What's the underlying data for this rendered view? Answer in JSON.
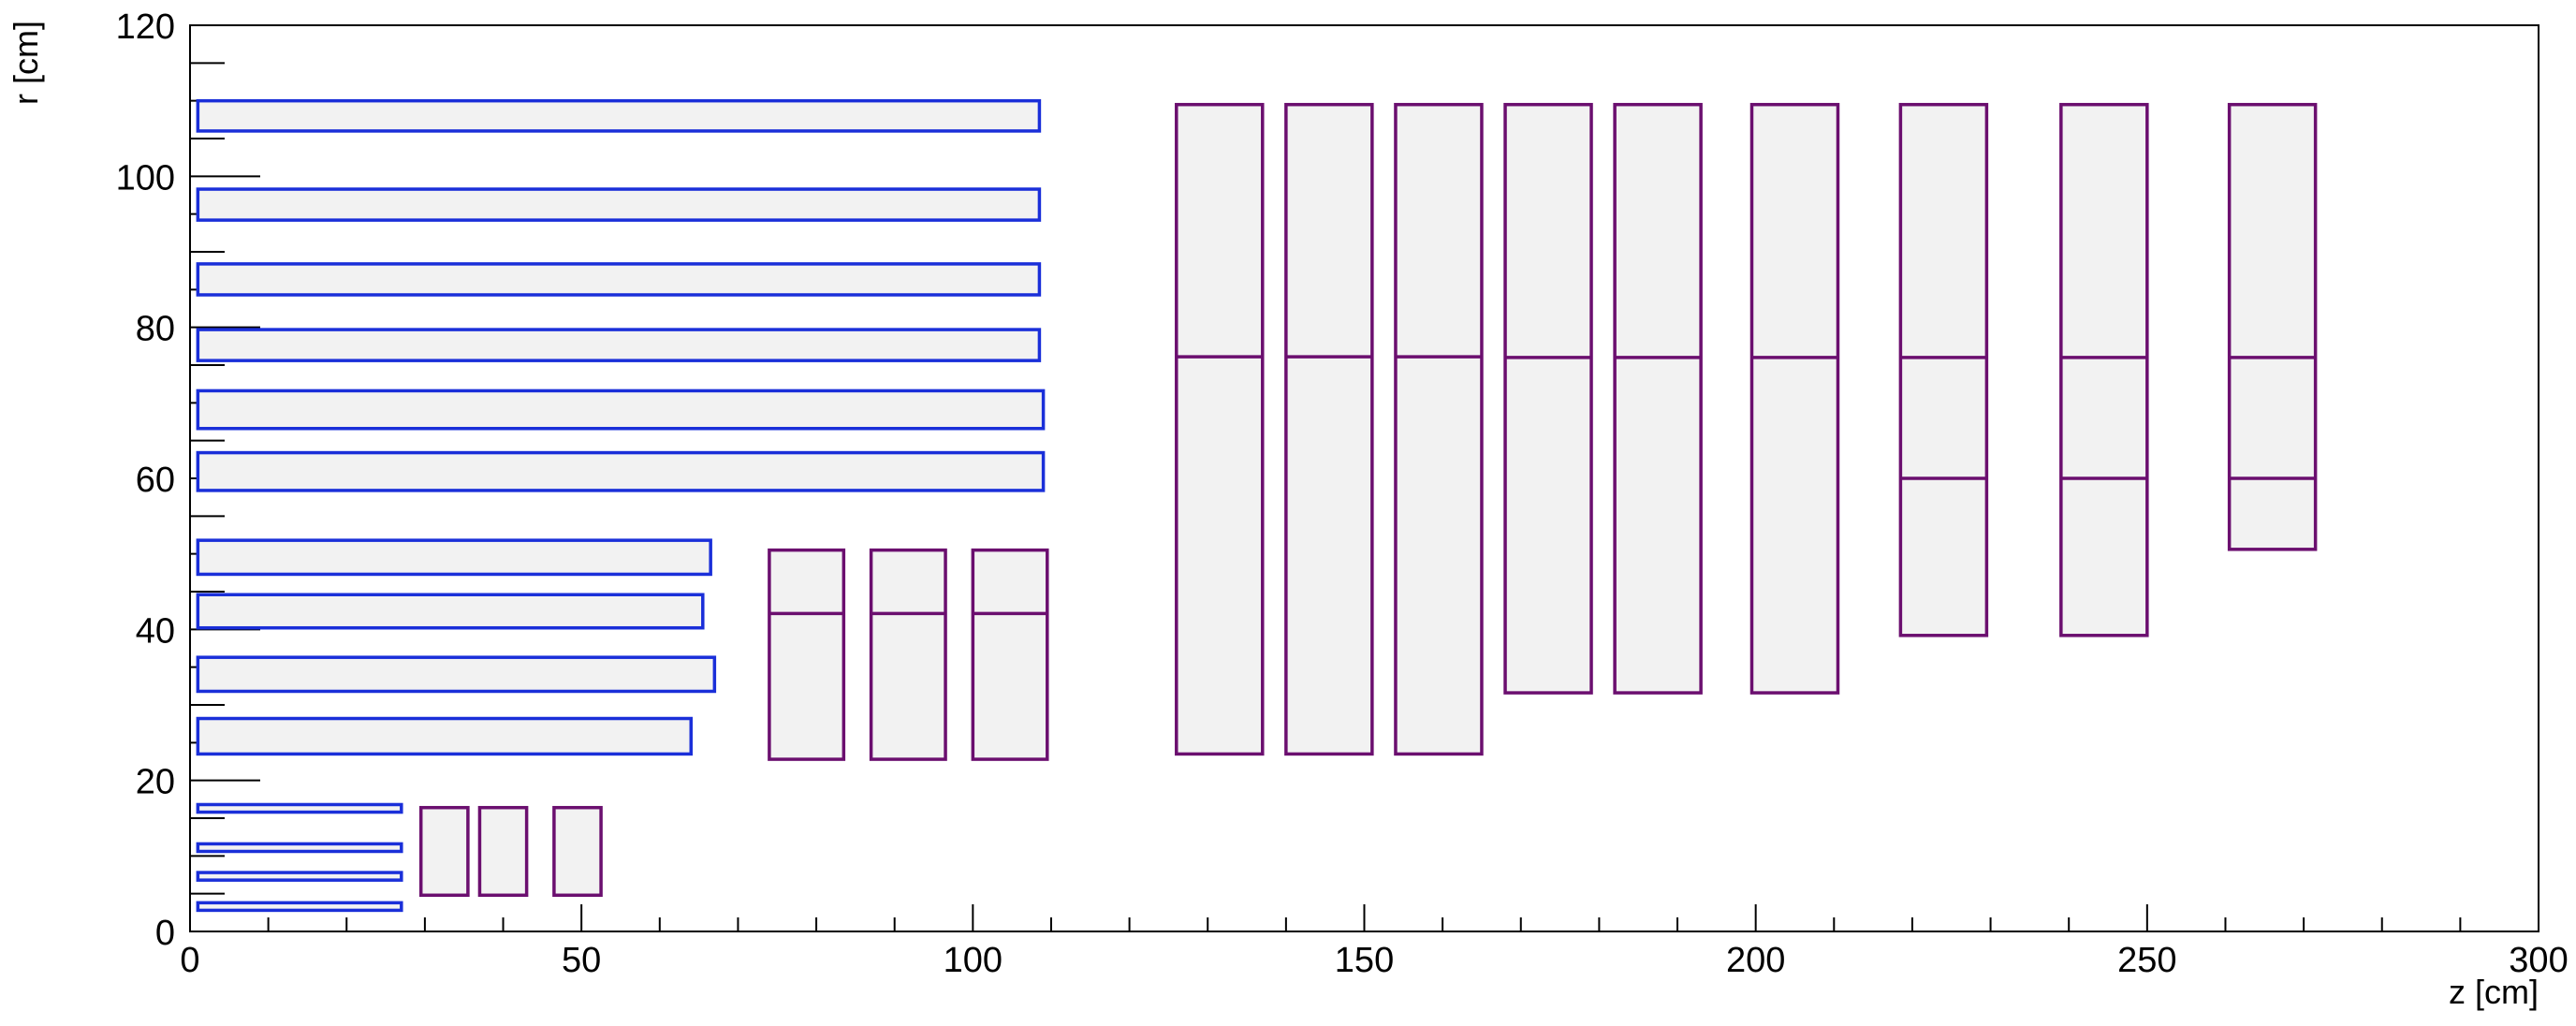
{
  "chart_data": {
    "type": "diagram",
    "xlabel": "z [cm]",
    "ylabel": "r [cm]",
    "xlim": [
      0,
      300
    ],
    "ylim": [
      0,
      120
    ],
    "x_ticks": [
      "0",
      "50",
      "100",
      "150",
      "200",
      "250",
      "300"
    ],
    "y_ticks": [
      "0",
      "20",
      "40",
      "60",
      "80",
      "100",
      "120"
    ],
    "x_tick_values": [
      0,
      50,
      100,
      150,
      200,
      250,
      300
    ],
    "y_tick_values": [
      0,
      20,
      40,
      60,
      80,
      100,
      120
    ],
    "colors": {
      "barrel_outline": "#1a2fd9",
      "endcap_outline": "#6b0f6f",
      "module_fill": "#f2f2f2",
      "frame": "#000000"
    },
    "barrel_layers": [
      {
        "z_min": 1,
        "z_max": 27,
        "r_min": 2.8,
        "r_max": 3.8
      },
      {
        "z_min": 1,
        "z_max": 27,
        "r_min": 6.8,
        "r_max": 7.8
      },
      {
        "z_min": 1,
        "z_max": 27,
        "r_min": 10.6,
        "r_max": 11.6
      },
      {
        "z_min": 1,
        "z_max": 27,
        "r_min": 15.8,
        "r_max": 16.8
      },
      {
        "z_min": 1,
        "z_max": 64,
        "r_min": 23.5,
        "r_max": 28.2
      },
      {
        "z_min": 1,
        "z_max": 67,
        "r_min": 31.8,
        "r_max": 36.3
      },
      {
        "z_min": 1,
        "z_max": 65.5,
        "r_min": 40.2,
        "r_max": 44.6
      },
      {
        "z_min": 1,
        "z_max": 66.5,
        "r_min": 47.3,
        "r_max": 51.8
      },
      {
        "z_min": 1,
        "z_max": 109,
        "r_min": 58.4,
        "r_max": 63.4
      },
      {
        "z_min": 1,
        "z_max": 109,
        "r_min": 66.6,
        "r_max": 71.6
      },
      {
        "z_min": 1,
        "z_max": 108.5,
        "r_min": 75.6,
        "r_max": 79.7
      },
      {
        "z_min": 1,
        "z_max": 108.5,
        "r_min": 84.3,
        "r_max": 88.4
      },
      {
        "z_min": 1,
        "z_max": 108.5,
        "r_min": 94.2,
        "r_max": 98.3
      },
      {
        "z_min": 1,
        "z_max": 108.5,
        "r_min": 106.0,
        "r_max": 110.0
      }
    ],
    "endcap_disks": [
      {
        "z_min": 29.5,
        "z_max": 35.5,
        "r_min": 4.8,
        "r_max": 16.4,
        "splits": []
      },
      {
        "z_min": 37.0,
        "z_max": 43.0,
        "r_min": 4.8,
        "r_max": 16.4,
        "splits": []
      },
      {
        "z_min": 46.5,
        "z_max": 52.5,
        "r_min": 4.8,
        "r_max": 16.4,
        "splits": []
      },
      {
        "z_min": 74.0,
        "z_max": 83.5,
        "r_min": 22.8,
        "r_max": 50.5,
        "splits": [
          42.1
        ]
      },
      {
        "z_min": 87.0,
        "z_max": 96.5,
        "r_min": 22.8,
        "r_max": 50.5,
        "splits": [
          42.1
        ]
      },
      {
        "z_min": 100.0,
        "z_max": 109.5,
        "r_min": 22.8,
        "r_max": 50.5,
        "splits": [
          42.1
        ]
      },
      {
        "z_min": 126.0,
        "z_max": 137.0,
        "r_min": 23.5,
        "r_max": 109.5,
        "splits": [
          76.1
        ]
      },
      {
        "z_min": 140.0,
        "z_max": 151.0,
        "r_min": 23.5,
        "r_max": 109.5,
        "splits": [
          76.1
        ]
      },
      {
        "z_min": 154.0,
        "z_max": 165.0,
        "r_min": 23.5,
        "r_max": 109.5,
        "splits": [
          76.1
        ]
      },
      {
        "z_min": 168.0,
        "z_max": 179.0,
        "r_min": 31.6,
        "r_max": 109.5,
        "splits": [
          76.0
        ]
      },
      {
        "z_min": 182.0,
        "z_max": 193.0,
        "r_min": 31.6,
        "r_max": 109.5,
        "splits": [
          76.0
        ]
      },
      {
        "z_min": 199.5,
        "z_max": 210.5,
        "r_min": 31.6,
        "r_max": 109.5,
        "splits": [
          76.0
        ]
      },
      {
        "z_min": 218.5,
        "z_max": 229.5,
        "r_min": 39.2,
        "r_max": 109.5,
        "splits": [
          60.0,
          76.0
        ]
      },
      {
        "z_min": 239.0,
        "z_max": 250.0,
        "r_min": 39.2,
        "r_max": 109.5,
        "splits": [
          60.0,
          76.0
        ]
      },
      {
        "z_min": 260.5,
        "z_max": 271.5,
        "r_min": 50.6,
        "r_max": 109.5,
        "splits": [
          60.0,
          76.0
        ]
      }
    ]
  }
}
